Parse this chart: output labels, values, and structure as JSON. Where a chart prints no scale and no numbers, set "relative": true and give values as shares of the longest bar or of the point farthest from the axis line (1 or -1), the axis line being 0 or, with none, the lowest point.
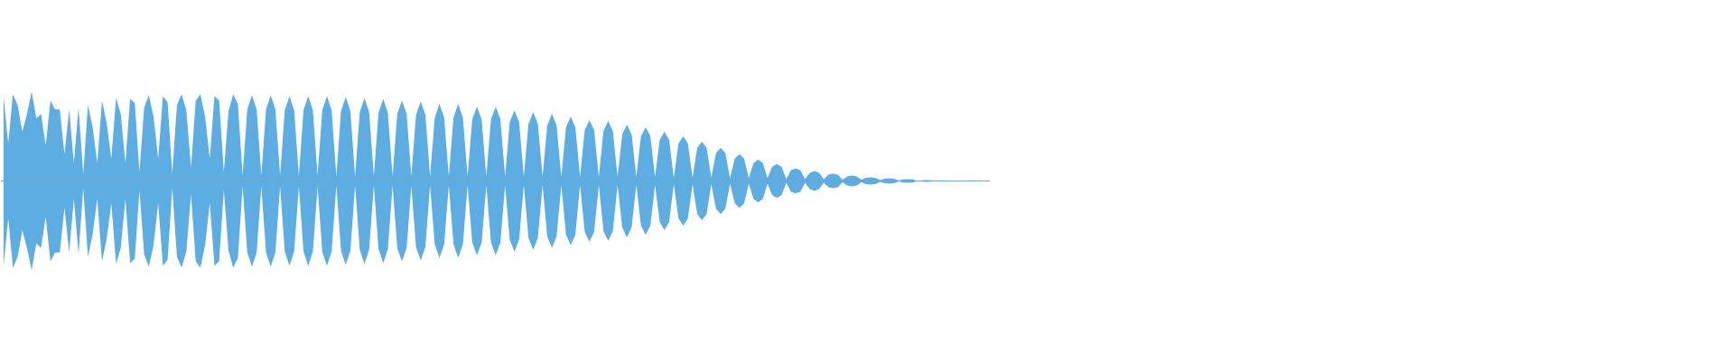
{
  "chart_data": {
    "type": "area",
    "relative": true,
    "categories": [
      null,
      null,
      null,
      null,
      null,
      null,
      null,
      null,
      null,
      null,
      null,
      null,
      null,
      null,
      null,
      null,
      null,
      null,
      null,
      null,
      null,
      null,
      null,
      null,
      null,
      null,
      null,
      null,
      null,
      null,
      null,
      null,
      null,
      null,
      null,
      null,
      null,
      null,
      null,
      null,
      null,
      null,
      null,
      null,
      null,
      null,
      null,
      null,
      null,
      null,
      null,
      null,
      null,
      null,
      null,
      null,
      null,
      null,
      null,
      null,
      null,
      null,
      null,
      null,
      null,
      null,
      null,
      null,
      null,
      null,
      null,
      null,
      null,
      null,
      null,
      null,
      null,
      null,
      null,
      null,
      null,
      null,
      null,
      null,
      null,
      null,
      null,
      null,
      null,
      null,
      null,
      null,
      null,
      null,
      null,
      null,
      null,
      null,
      null,
      null,
      null,
      null,
      null,
      null,
      null,
      null,
      null,
      null,
      null,
      null,
      null,
      null,
      null,
      null,
      null,
      null,
      null,
      null,
      null,
      null,
      null,
      null,
      null,
      null,
      null,
      null,
      null,
      null,
      null,
      null,
      null,
      null,
      null,
      null,
      null,
      null,
      null,
      null,
      null,
      null,
      null,
      null,
      null,
      null,
      null,
      null,
      null,
      null,
      null,
      null,
      null,
      null,
      null,
      null,
      null,
      null,
      null,
      null,
      null,
      null,
      null,
      null,
      null,
      null,
      null,
      null,
      null,
      null,
      null,
      null,
      null,
      null,
      null,
      null,
      null,
      null,
      null,
      null,
      null,
      null,
      null,
      null,
      null,
      null,
      null,
      null,
      null,
      null,
      null,
      null,
      null,
      null,
      null,
      null,
      null,
      null,
      null,
      null,
      null,
      null,
      null,
      null,
      null,
      null,
      null,
      null,
      null,
      null,
      null,
      null,
      null
    ],
    "series": [
      {
        "color": "#5dade2",
        "values": [
          0.95,
          0.42,
          0.97,
          0.85,
          0.55,
          0.75,
          1,
          0.7,
          0.75,
          0.4,
          0.9,
          0.8,
          0.8,
          0.3,
          0.8,
          0.2,
          0.82,
          0.08,
          0.85,
          0.6,
          0.2,
          0.9,
          0.65,
          0.25,
          0.93,
          0.75,
          0.2,
          0.92,
          0.87,
          0.1,
          0.82,
          0.96,
          0.72,
          0.25,
          0.95,
          0.88,
          0.08,
          0.85,
          0.97,
          0.79,
          0.15,
          0.9,
          0.97,
          0.72,
          0.25,
          0.95,
          0.9,
          0.1,
          0.78,
          0.97,
          0.86,
          0.06,
          0.8,
          0.96,
          0.8,
          0.06,
          0.8,
          0.96,
          0.8,
          0.06,
          0.79,
          0.95,
          0.79,
          0.06,
          0.79,
          0.95,
          0.79,
          0.06,
          0.79,
          0.95,
          0.79,
          0.05,
          0.78,
          0.94,
          0.78,
          0.05,
          0.77,
          0.93,
          0.77,
          0.05,
          0.76,
          0.92,
          0.76,
          0.05,
          0.75,
          0.9,
          0.75,
          0.05,
          0.74,
          0.89,
          0.74,
          0.05,
          0.71,
          0.86,
          0.71,
          0.05,
          0.71,
          0.86,
          0.71,
          0.05,
          0.69,
          0.83,
          0.69,
          0.05,
          0.69,
          0.83,
          0.69,
          0.05,
          0.66,
          0.79,
          0.66,
          0.045,
          0.64,
          0.77,
          0.64,
          0.045,
          0.62,
          0.75,
          0.62,
          0.045,
          0.6,
          0.72,
          0.6,
          0.045,
          0.57,
          0.68,
          0.57,
          0.045,
          0.56,
          0.67,
          0.56,
          0.045,
          0.52,
          0.63,
          0.52,
          0.045,
          0.5,
          0.6,
          0.5,
          0.045,
          0.46,
          0.55,
          0.46,
          0.035,
          0.42,
          0.5,
          0.42,
          0.035,
          0.37,
          0.44,
          0.37,
          0.035,
          0.31,
          0.37,
          0.31,
          0.03,
          0.25,
          0.3,
          0.25,
          0.03,
          0.2,
          0.24,
          0.2,
          0.03,
          0.16,
          0.19,
          0.16,
          0.02,
          0.12,
          0.14,
          0.12,
          0.02,
          0.09,
          0.11,
          0.09,
          0.02,
          0.07,
          0.08,
          0.07,
          0.015,
          0.05,
          0.06,
          0.05,
          0.015,
          0.035,
          0.04,
          0.035,
          0.01,
          0.025,
          0.03,
          0.025,
          0.005,
          0.017,
          0.02,
          0.017,
          0,
          0.008,
          0.01,
          0.008,
          0,
          0.004,
          0.005,
          0.004,
          0,
          0.004,
          0.005,
          0.004,
          0,
          0.004,
          0.005,
          0
        ]
      },
      {
        "color": "#5dade3",
        "values": [
          -0.95,
          -0.42,
          -0.97,
          -0.85,
          -0.55,
          -0.75,
          -1,
          -0.7,
          -0.75,
          -0.4,
          -0.9,
          -0.8,
          -0.8,
          -0.3,
          -0.8,
          -0.2,
          -0.82,
          -0.08,
          -0.85,
          -0.6,
          -0.2,
          -0.9,
          -0.65,
          -0.25,
          -0.93,
          -0.75,
          -0.2,
          -0.92,
          -0.87,
          -0.1,
          -0.82,
          -0.96,
          -0.72,
          -0.25,
          -0.95,
          -0.88,
          -0.08,
          -0.85,
          -0.97,
          -0.79,
          -0.15,
          -0.9,
          -0.97,
          -0.72,
          -0.25,
          -0.95,
          -0.9,
          -0.1,
          -0.78,
          -0.97,
          -0.86,
          -0.06,
          -0.8,
          -0.96,
          -0.8,
          -0.06,
          -0.8,
          -0.96,
          -0.8,
          -0.06,
          -0.79,
          -0.95,
          -0.79,
          -0.06,
          -0.79,
          -0.95,
          -0.79,
          -0.06,
          -0.79,
          -0.95,
          -0.79,
          -0.05,
          -0.78,
          -0.94,
          -0.78,
          -0.05,
          -0.77,
          -0.93,
          -0.77,
          -0.05,
          -0.76,
          -0.92,
          -0.76,
          -0.05,
          -0.75,
          -0.9,
          -0.75,
          -0.05,
          -0.74,
          -0.89,
          -0.74,
          -0.05,
          -0.71,
          -0.86,
          -0.71,
          -0.05,
          -0.71,
          -0.86,
          -0.71,
          -0.05,
          -0.69,
          -0.83,
          -0.69,
          -0.05,
          -0.69,
          -0.83,
          -0.69,
          -0.05,
          -0.66,
          -0.79,
          -0.66,
          -0.045,
          -0.64,
          -0.77,
          -0.64,
          -0.045,
          -0.62,
          -0.75,
          -0.62,
          -0.045,
          -0.6,
          -0.72,
          -0.6,
          -0.045,
          -0.57,
          -0.68,
          -0.57,
          -0.045,
          -0.56,
          -0.67,
          -0.56,
          -0.045,
          -0.52,
          -0.63,
          -0.52,
          -0.045,
          -0.5,
          -0.6,
          -0.5,
          -0.045,
          -0.46,
          -0.55,
          -0.46,
          -0.035,
          -0.42,
          -0.5,
          -0.42,
          -0.035,
          -0.37,
          -0.44,
          -0.37,
          -0.035,
          -0.31,
          -0.37,
          -0.31,
          -0.03,
          -0.25,
          -0.3,
          -0.25,
          -0.03,
          -0.2,
          -0.24,
          -0.2,
          -0.03,
          -0.16,
          -0.19,
          -0.16,
          -0.02,
          -0.12,
          -0.14,
          -0.12,
          -0.02,
          -0.09,
          -0.11,
          -0.09,
          -0.02,
          -0.07,
          -0.08,
          -0.07,
          -0.015,
          -0.05,
          -0.06,
          -0.05,
          -0.015,
          -0.035,
          -0.04,
          -0.035,
          -0.01,
          -0.025,
          -0.03,
          -0.025,
          -0.005,
          -0.017,
          -0.02,
          -0.017,
          0,
          -0.008,
          -0.01,
          -0.008,
          0,
          -0.004,
          -0.005,
          -0.004,
          0,
          -0.004,
          -0.005,
          -0.004,
          0,
          -0.004,
          -0.005,
          0
        ]
      }
    ]
  }
}
